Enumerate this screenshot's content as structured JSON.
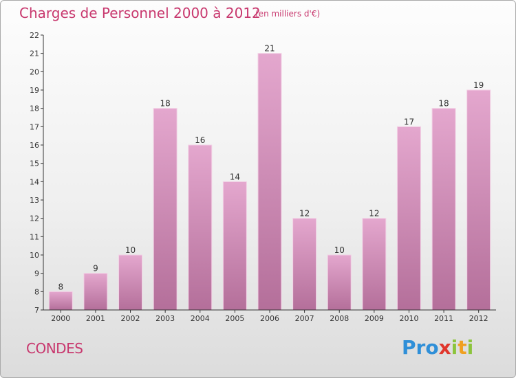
{
  "header": {
    "title": "Charges de Personnel 2000 à 2012",
    "unit": "(en milliers d'€)"
  },
  "footer": {
    "city": "CONDES",
    "logo_letters": [
      {
        "char": "P",
        "color": "#2f8fd8"
      },
      {
        "char": "r",
        "color": "#2f8fd8"
      },
      {
        "char": "o",
        "color": "#2f8fd8"
      },
      {
        "char": "x",
        "color": "#e0362c"
      },
      {
        "char": "i",
        "color": "#8cc43c"
      },
      {
        "char": "t",
        "color": "#f0a020"
      },
      {
        "char": "i",
        "color": "#8cc43c"
      }
    ]
  },
  "chart_data": {
    "type": "bar",
    "categories": [
      "2000",
      "2001",
      "2002",
      "2003",
      "2004",
      "2005",
      "2006",
      "2007",
      "2008",
      "2009",
      "2010",
      "2011",
      "2012"
    ],
    "values": [
      8,
      9,
      10,
      18,
      16,
      14,
      21,
      12,
      10,
      12,
      17,
      18,
      19
    ],
    "title": "Charges de Personnel 2000 à 2012",
    "xlabel": "",
    "ylabel": "",
    "ylim": [
      7,
      22
    ],
    "yticks": [
      7,
      8,
      9,
      10,
      11,
      12,
      13,
      14,
      15,
      16,
      17,
      18,
      19,
      20,
      21,
      22
    ],
    "grid": false,
    "data_labels": true,
    "colors": {
      "bar_top": "#e4a7ce",
      "bar_bottom": "#b46f9a",
      "bar_edge": "#f3d2e6",
      "axis": "#333333",
      "text": "#333333"
    }
  }
}
